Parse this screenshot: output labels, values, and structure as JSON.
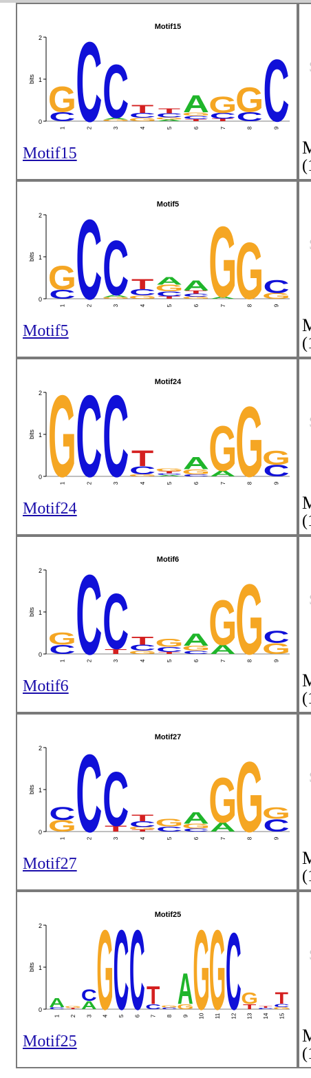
{
  "motifs": [
    {
      "name": "Motif15",
      "link": "Motif15",
      "width": 9,
      "positions": [
        {
          "letters": [
            [
              "C",
              0.22
            ],
            [
              "G",
              0.62
            ]
          ]
        },
        {
          "letters": [
            [
              "C",
              1.95
            ]
          ]
        },
        {
          "letters": [
            [
              "G",
              0.04
            ],
            [
              "A",
              0.04
            ],
            [
              "C",
              1.3
            ]
          ]
        },
        {
          "letters": [
            [
              "G",
              0.08
            ],
            [
              "C",
              0.12
            ],
            [
              "T",
              0.2
            ]
          ]
        },
        {
          "letters": [
            [
              "A",
              0.04
            ],
            [
              "G",
              0.05
            ],
            [
              "C",
              0.1
            ],
            [
              "T",
              0.12
            ]
          ]
        },
        {
          "letters": [
            [
              "T",
              0.05
            ],
            [
              "C",
              0.08
            ],
            [
              "G",
              0.08
            ],
            [
              "A",
              0.42
            ]
          ]
        },
        {
          "letters": [
            [
              "T",
              0.06
            ],
            [
              "C",
              0.14
            ],
            [
              "G",
              0.4
            ]
          ]
        },
        {
          "letters": [
            [
              "C",
              0.22
            ],
            [
              "G",
              0.6
            ]
          ]
        },
        {
          "letters": [
            [
              "C",
              1.52
            ]
          ]
        }
      ]
    },
    {
      "name": "Motif5",
      "link": "Motif5",
      "width": 9,
      "positions": [
        {
          "letters": [
            [
              "C",
              0.22
            ],
            [
              "G",
              0.58
            ]
          ]
        },
        {
          "letters": [
            [
              "C",
              1.95
            ]
          ]
        },
        {
          "letters": [
            [
              "G",
              0.04
            ],
            [
              "A",
              0.05
            ],
            [
              "C",
              1.34
            ]
          ]
        },
        {
          "letters": [
            [
              "G",
              0.08
            ],
            [
              "C",
              0.15
            ],
            [
              "T",
              0.25
            ]
          ]
        },
        {
          "letters": [
            [
              "T",
              0.06
            ],
            [
              "C",
              0.12
            ],
            [
              "G",
              0.16
            ],
            [
              "A",
              0.18
            ]
          ]
        },
        {
          "letters": [
            [
              "G",
              0.05
            ],
            [
              "C",
              0.07
            ],
            [
              "T",
              0.08
            ],
            [
              "A",
              0.25
            ]
          ]
        },
        {
          "letters": [
            [
              "A",
              0.05
            ],
            [
              "G",
              1.73
            ]
          ]
        },
        {
          "letters": [
            [
              "G",
              1.38
            ]
          ]
        },
        {
          "letters": [
            [
              "G",
              0.14
            ],
            [
              "C",
              0.32
            ]
          ]
        }
      ]
    },
    {
      "name": "Motif24",
      "link": "Motif24",
      "width": 9,
      "positions": [
        {
          "letters": [
            [
              "G",
              2.0
            ]
          ]
        },
        {
          "letters": [
            [
              "C",
              2.0
            ]
          ]
        },
        {
          "letters": [
            [
              "C",
              2.0
            ]
          ]
        },
        {
          "letters": [
            [
              "G",
              0.05
            ],
            [
              "C",
              0.2
            ],
            [
              "T",
              0.38
            ]
          ]
        },
        {
          "letters": [
            [
              "A",
              0.03
            ],
            [
              "C",
              0.04
            ],
            [
              "T",
              0.05
            ],
            [
              "G",
              0.06
            ]
          ]
        },
        {
          "letters": [
            [
              "C",
              0.05
            ],
            [
              "G",
              0.12
            ],
            [
              "A",
              0.3
            ]
          ]
        },
        {
          "letters": [
            [
              "A",
              0.14
            ],
            [
              "G",
              1.1
            ]
          ]
        },
        {
          "letters": [
            [
              "G",
              1.72
            ]
          ]
        },
        {
          "letters": [
            [
              "C",
              0.28
            ],
            [
              "G",
              0.34
            ]
          ]
        }
      ]
    },
    {
      "name": "Motif6",
      "link": "Motif6",
      "width": 9,
      "positions": [
        {
          "letters": [
            [
              "C",
              0.22
            ],
            [
              "G",
              0.3
            ]
          ]
        },
        {
          "letters": [
            [
              "C",
              1.95
            ]
          ]
        },
        {
          "letters": [
            [
              "T",
              0.12
            ],
            [
              "C",
              1.36
            ]
          ]
        },
        {
          "letters": [
            [
              "G",
              0.08
            ],
            [
              "C",
              0.14
            ],
            [
              "T",
              0.2
            ]
          ]
        },
        {
          "letters": [
            [
              "T",
              0.05
            ],
            [
              "C",
              0.12
            ],
            [
              "G",
              0.2
            ]
          ]
        },
        {
          "letters": [
            [
              "C",
              0.08
            ],
            [
              "G",
              0.12
            ],
            [
              "A",
              0.3
            ]
          ]
        },
        {
          "letters": [
            [
              "A",
              0.22
            ],
            [
              "G",
              1.1
            ]
          ]
        },
        {
          "letters": [
            [
              "G",
              1.72
            ]
          ]
        },
        {
          "letters": [
            [
              "G",
              0.26
            ],
            [
              "C",
              0.3
            ]
          ]
        }
      ]
    },
    {
      "name": "Motif27",
      "link": "Motif27",
      "width": 9,
      "positions": [
        {
          "letters": [
            [
              "G",
              0.28
            ],
            [
              "C",
              0.32
            ]
          ]
        },
        {
          "letters": [
            [
              "C",
              1.9
            ]
          ]
        },
        {
          "letters": [
            [
              "T",
              0.14
            ],
            [
              "C",
              1.33
            ]
          ]
        },
        {
          "letters": [
            [
              "T",
              0.05
            ],
            [
              "G",
              0.06
            ],
            [
              "C",
              0.14
            ],
            [
              "T",
              0.16
            ]
          ]
        },
        {
          "letters": [
            [
              "C",
              0.12
            ],
            [
              "G",
              0.18
            ]
          ]
        },
        {
          "letters": [
            [
              "C",
              0.07
            ],
            [
              "G",
              0.12
            ],
            [
              "A",
              0.28
            ]
          ]
        },
        {
          "letters": [
            [
              "A",
              0.22
            ],
            [
              "G",
              1.1
            ]
          ]
        },
        {
          "letters": [
            [
              "G",
              1.72
            ]
          ]
        },
        {
          "letters": [
            [
              "C",
              0.3
            ],
            [
              "G",
              0.28
            ]
          ]
        }
      ]
    },
    {
      "name": "Motif25",
      "link": "Motif25",
      "width": 15,
      "positions": [
        {
          "letters": [
            [
              "C",
              0.05
            ],
            [
              "A",
              0.22
            ]
          ]
        },
        {
          "letters": [
            [
              "T",
              0.03
            ],
            [
              "G",
              0.04
            ]
          ]
        },
        {
          "letters": [
            [
              "A",
              0.2
            ],
            [
              "C",
              0.28
            ]
          ]
        },
        {
          "letters": [
            [
              "G",
              1.95
            ]
          ]
        },
        {
          "letters": [
            [
              "C",
              1.95
            ]
          ]
        },
        {
          "letters": [
            [
              "C",
              1.95
            ]
          ]
        },
        {
          "letters": [
            [
              "C",
              0.12
            ],
            [
              "T",
              0.44
            ]
          ]
        },
        {
          "letters": [
            [
              "C",
              0.04
            ],
            [
              "G",
              0.05
            ]
          ]
        },
        {
          "letters": [
            [
              "G",
              0.12
            ],
            [
              "A",
              0.75
            ]
          ]
        },
        {
          "letters": [
            [
              "G",
              1.95
            ]
          ]
        },
        {
          "letters": [
            [
              "G",
              1.95
            ]
          ]
        },
        {
          "letters": [
            [
              "C",
              1.88
            ]
          ]
        },
        {
          "letters": [
            [
              "T",
              0.12
            ],
            [
              "G",
              0.28
            ]
          ]
        },
        {
          "letters": [
            [
              "C",
              0.03
            ],
            [
              "T",
              0.04
            ]
          ]
        },
        {
          "letters": [
            [
              "G",
              0.05
            ],
            [
              "C",
              0.08
            ],
            [
              "T",
              0.28
            ]
          ]
        }
      ]
    }
  ],
  "info_fragments": {
    "top": "S",
    "line1": "M",
    "line2": "(1"
  },
  "colors": {
    "A": "#1fb52a",
    "C": "#1010d8",
    "G": "#f5a623",
    "T": "#d42020"
  }
}
